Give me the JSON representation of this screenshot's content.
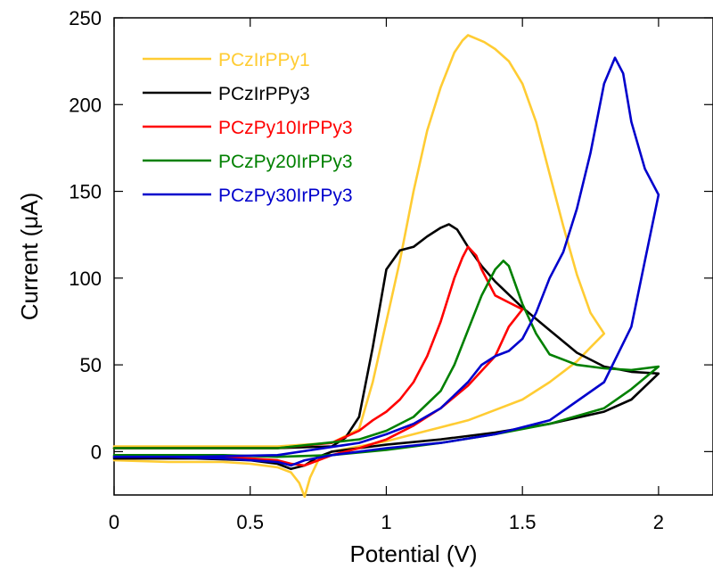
{
  "chart_data": {
    "type": "line",
    "title": "",
    "xlabel": "Potential (V)",
    "ylabel": "Current (μA)",
    "xlim": [
      0,
      2.2
    ],
    "ylim": [
      -25,
      250
    ],
    "xticks": [
      "0",
      "0.5",
      "1",
      "1.5",
      "2"
    ],
    "yticks": [
      "0",
      "50",
      "100",
      "150",
      "200",
      "250"
    ],
    "grid": false,
    "legend_position": "top-left",
    "series": [
      {
        "name": "PCzIrPPy1",
        "color": "#FFCC33",
        "x": [
          0.0,
          0.3,
          0.6,
          0.8,
          0.9,
          0.95,
          1.0,
          1.05,
          1.1,
          1.15,
          1.2,
          1.25,
          1.28,
          1.3,
          1.33,
          1.36,
          1.4,
          1.45,
          1.5,
          1.55,
          1.6,
          1.65,
          1.7,
          1.75,
          1.8,
          1.75,
          1.7,
          1.6,
          1.5,
          1.4,
          1.3,
          1.2,
          1.1,
          1.0,
          0.9,
          0.8,
          0.75,
          0.72,
          0.7,
          0.68,
          0.65,
          0.6,
          0.5,
          0.4,
          0.2,
          0.0
        ],
        "y": [
          3,
          3,
          3,
          5,
          13,
          40,
          75,
          110,
          150,
          185,
          210,
          230,
          237,
          240,
          238,
          236,
          232,
          225,
          212,
          190,
          160,
          130,
          102,
          80,
          68,
          60,
          52,
          40,
          30,
          24,
          18,
          14,
          10,
          6,
          3,
          0,
          -5,
          -15,
          -26,
          -18,
          -12,
          -9,
          -7,
          -6,
          -6,
          -5
        ]
      },
      {
        "name": "PCzIrPPy3",
        "color": "#000000",
        "x": [
          0.0,
          0.3,
          0.6,
          0.8,
          0.85,
          0.9,
          0.95,
          1.0,
          1.05,
          1.1,
          1.15,
          1.2,
          1.23,
          1.26,
          1.3,
          1.35,
          1.4,
          1.5,
          1.6,
          1.7,
          1.8,
          1.9,
          2.0,
          1.9,
          1.8,
          1.6,
          1.4,
          1.2,
          1.0,
          0.9,
          0.8,
          0.75,
          0.7,
          0.65,
          0.6,
          0.5,
          0.3,
          0.0
        ],
        "y": [
          2,
          2,
          2,
          3,
          8,
          20,
          60,
          105,
          116,
          118,
          124,
          129,
          131,
          128,
          118,
          107,
          98,
          83,
          70,
          57,
          49,
          46,
          45,
          30,
          23,
          16,
          11,
          7,
          4,
          2,
          0,
          -3,
          -8,
          -10,
          -7,
          -5,
          -4,
          -4
        ]
      },
      {
        "name": "PCzPy10IrPPy3",
        "color": "#FF0000",
        "x": [
          0.0,
          0.3,
          0.6,
          0.8,
          0.9,
          0.95,
          1.0,
          1.05,
          1.1,
          1.15,
          1.2,
          1.25,
          1.28,
          1.3,
          1.33,
          1.35,
          1.4,
          1.45,
          1.5,
          1.45,
          1.4,
          1.3,
          1.2,
          1.1,
          1.0,
          0.9,
          0.8,
          0.75,
          0.7,
          0.65,
          0.6,
          0.5,
          0.3,
          0.0
        ],
        "y": [
          2,
          2,
          2,
          5,
          12,
          18,
          23,
          30,
          40,
          55,
          75,
          100,
          112,
          118,
          113,
          105,
          90,
          86,
          82,
          72,
          55,
          38,
          25,
          15,
          7,
          2,
          -2,
          -5,
          -8,
          -7,
          -5,
          -4,
          -3,
          -3
        ]
      },
      {
        "name": "PCzPy20IrPPy3",
        "color": "#008000",
        "x": [
          0.0,
          0.3,
          0.6,
          0.9,
          1.0,
          1.1,
          1.2,
          1.25,
          1.3,
          1.35,
          1.4,
          1.43,
          1.45,
          1.5,
          1.55,
          1.6,
          1.7,
          1.8,
          1.9,
          2.0,
          1.9,
          1.8,
          1.6,
          1.4,
          1.2,
          1.0,
          0.8,
          0.6,
          0.4,
          0.2,
          0.0
        ],
        "y": [
          2,
          2,
          2,
          7,
          12,
          20,
          35,
          50,
          70,
          90,
          105,
          110,
          107,
          85,
          68,
          56,
          50,
          48,
          47,
          49,
          36,
          25,
          16,
          10,
          5,
          1,
          -2,
          -3,
          -2,
          -2,
          -2
        ]
      },
      {
        "name": "PCzPy30IrPPy3",
        "color": "#0000CC",
        "x": [
          0.0,
          0.3,
          0.6,
          0.9,
          1.0,
          1.1,
          1.2,
          1.3,
          1.35,
          1.4,
          1.45,
          1.5,
          1.55,
          1.6,
          1.65,
          1.7,
          1.75,
          1.8,
          1.84,
          1.87,
          1.9,
          1.95,
          2.0,
          1.95,
          1.9,
          1.8,
          1.6,
          1.4,
          1.2,
          1.0,
          0.8,
          0.7,
          0.65,
          0.6,
          0.4,
          0.2,
          0.0
        ],
        "y": [
          -3,
          -3,
          -2,
          5,
          10,
          16,
          25,
          40,
          50,
          55,
          58,
          65,
          80,
          100,
          115,
          140,
          172,
          212,
          227,
          218,
          190,
          163,
          148,
          110,
          72,
          40,
          18,
          10,
          5,
          2,
          -2,
          -5,
          -8,
          -6,
          -4,
          -3,
          -3
        ]
      }
    ]
  }
}
